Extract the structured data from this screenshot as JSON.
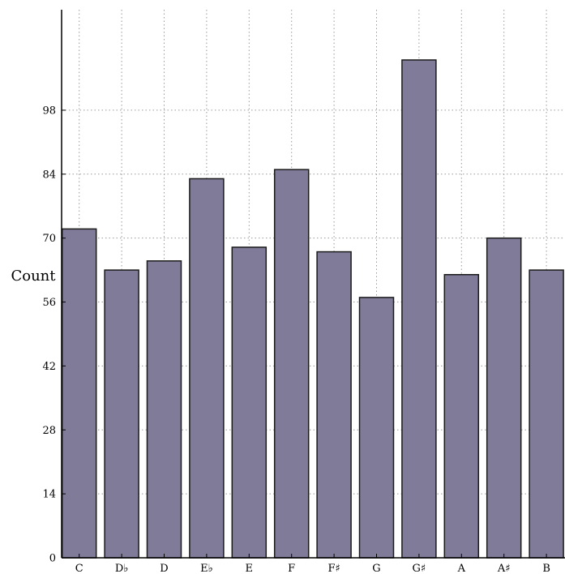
{
  "chart_data": {
    "type": "bar",
    "title": "",
    "xlabel": "",
    "ylabel": "Count",
    "categories": [
      "C",
      "D♭",
      "D",
      "E♭",
      "E",
      "F",
      "F♯",
      "G",
      "G♯",
      "A",
      "A♯",
      "B"
    ],
    "values": [
      72,
      63,
      65,
      83,
      68,
      85,
      67,
      57,
      109,
      62,
      70,
      63
    ],
    "ylim": [
      0,
      120
    ],
    "yticks": [
      0,
      14,
      28,
      42,
      56,
      70,
      84,
      98
    ],
    "grid": true,
    "bar_color": "#7f7b98",
    "bar_edge_color": "#1a1a1a"
  }
}
